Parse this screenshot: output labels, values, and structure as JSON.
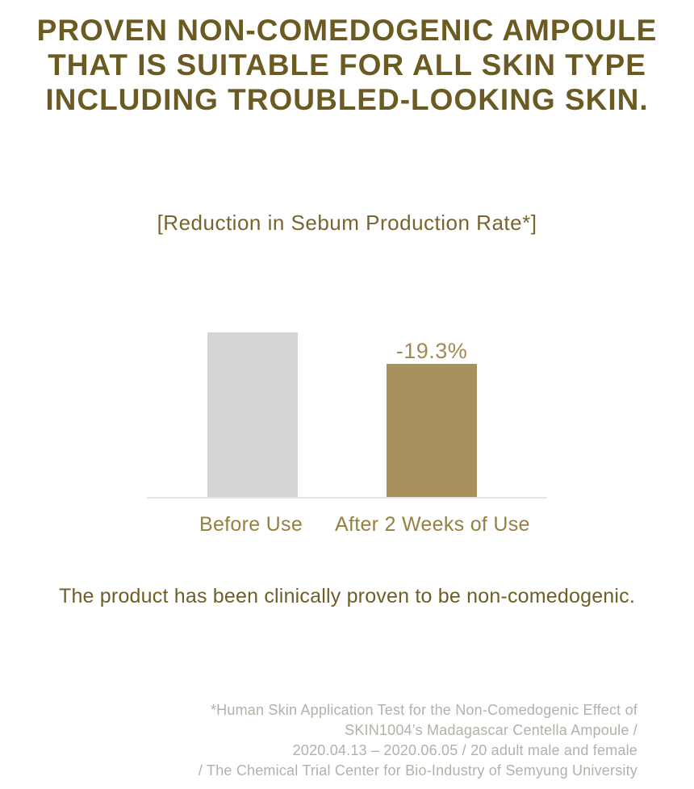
{
  "headline": {
    "lines": [
      "PROVEN NON-COMEDOGENIC AMPOULE",
      "THAT IS SUITABLE FOR ALL SKIN TYPE",
      "INCLUDING TROUBLED-LOOKING SKIN."
    ],
    "color": "#6b5a21"
  },
  "chart": {
    "title": "[Reduction in Sebum Production Rate*]",
    "value_label": "-19.3%",
    "colors": {
      "before_bar": "#d5d5d5",
      "after_bar": "#a8915c",
      "axis_line": "#e4e4e4",
      "category_label": "#97803f",
      "value_label": "#a28a52",
      "title": "#776430"
    }
  },
  "chart_data": {
    "type": "bar",
    "title": "[Reduction in Sebum Production Rate*]",
    "categories": [
      "Before Use",
      "After 2 Weeks of Use"
    ],
    "values": [
      100,
      80.7
    ],
    "value_basis": "relative sebum production rate, Before Use = 100",
    "annotations": [
      {
        "category": "After 2 Weeks of Use",
        "label": "-19.3%"
      }
    ],
    "xlabel": "",
    "ylabel": "",
    "grid": false,
    "legend": false,
    "bar_colors": [
      "#d5d5d5",
      "#a8915c"
    ]
  },
  "claim": {
    "text": "The product has been clinically proven to be non-comedogenic."
  },
  "footnote": {
    "lines": [
      "*Human Skin Application Test for the Non-Comedogenic Effect of",
      "SKIN1004’s Madagascar Centella Ampoule /",
      "2020.04.13 – 2020.06.05 / 20 adult male and female",
      "/ The Chemical Trial Center for Bio-Industry of Semyung University"
    ]
  }
}
